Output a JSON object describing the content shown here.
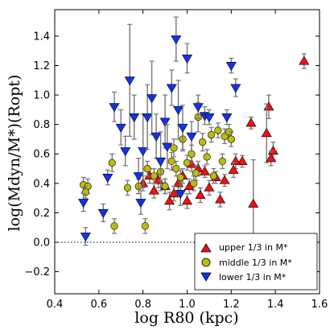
{
  "chart_data": {
    "type": "scatter",
    "title": "",
    "xlabel": "log R80 (kpc)",
    "ylabel": "log(Mdyn/M*)(Ropt)",
    "xlim": [
      0.4,
      1.6
    ],
    "ylim": [
      -0.35,
      1.58
    ],
    "xticks": [
      0.4,
      0.6,
      0.8,
      1.0,
      1.2,
      1.4,
      1.6
    ],
    "xtick_labels": [
      "0.4",
      "0.6",
      "0.8",
      "1.0",
      "1.2",
      "1.4",
      "1.6"
    ],
    "yticks": [
      -0.2,
      0.0,
      0.2,
      0.4,
      0.6,
      0.8,
      1.0,
      1.2,
      1.4
    ],
    "ytick_labels": [
      "−0.2",
      "0.0",
      "0.2",
      "0.4",
      "0.6",
      "0.8",
      "1.0",
      "1.2",
      "1.4"
    ],
    "reference_line": {
      "y": 0.0,
      "style": "dotted"
    },
    "grid": false,
    "legend": {
      "position": "bottom-right",
      "entries": [
        "upper 1/3 in M*",
        "middle 1/3 in M*",
        "lower 1/3 in M*"
      ]
    },
    "series": [
      {
        "name": "upper 1/3 in M*",
        "marker": "triangle-up",
        "color": "#ee1111",
        "points": [
          {
            "x": 1.53,
            "y": 1.23,
            "yerr": 0.05
          },
          {
            "x": 1.37,
            "y": 0.92,
            "yerr": 0.08
          },
          {
            "x": 1.36,
            "y": 0.74,
            "yerr": 0.2
          },
          {
            "x": 1.39,
            "y": 0.62,
            "yerr": 0.06
          },
          {
            "x": 1.38,
            "y": 0.57,
            "yerr": 0.05
          },
          {
            "x": 1.29,
            "y": 0.81,
            "yerr": 0.04
          },
          {
            "x": 1.3,
            "y": 0.26,
            "yerr": 0.3
          },
          {
            "x": 1.25,
            "y": 0.55,
            "yerr": 0.04
          },
          {
            "x": 1.22,
            "y": 0.55,
            "yerr": 0.05
          },
          {
            "x": 1.21,
            "y": 0.49,
            "yerr": 0.05
          },
          {
            "x": 1.17,
            "y": 0.42,
            "yerr": 0.04
          },
          {
            "x": 1.13,
            "y": 0.44,
            "yerr": 0.04
          },
          {
            "x": 1.1,
            "y": 0.37,
            "yerr": 0.05
          },
          {
            "x": 1.08,
            "y": 0.48,
            "yerr": 0.04
          },
          {
            "x": 1.05,
            "y": 0.5,
            "yerr": 0.05
          },
          {
            "x": 1.02,
            "y": 0.53,
            "yerr": 0.05
          },
          {
            "x": 1.01,
            "y": 0.38,
            "yerr": 0.05
          },
          {
            "x": 0.98,
            "y": 0.45,
            "yerr": 0.05
          },
          {
            "x": 0.96,
            "y": 0.4,
            "yerr": 0.05
          },
          {
            "x": 0.94,
            "y": 0.33,
            "yerr": 0.05
          },
          {
            "x": 0.92,
            "y": 0.28,
            "yerr": 0.06
          },
          {
            "x": 0.9,
            "y": 0.38,
            "yerr": 0.05
          },
          {
            "x": 0.87,
            "y": 0.42,
            "yerr": 0.05
          },
          {
            "x": 0.85,
            "y": 0.35,
            "yerr": 0.05
          },
          {
            "x": 0.83,
            "y": 0.45,
            "yerr": 0.05
          },
          {
            "x": 0.8,
            "y": 0.4,
            "yerr": 0.05
          },
          {
            "x": 1.0,
            "y": 0.28,
            "yerr": 0.05
          },
          {
            "x": 1.06,
            "y": 0.32,
            "yerr": 0.05
          },
          {
            "x": 1.15,
            "y": 0.29,
            "yerr": 0.05
          }
        ]
      },
      {
        "name": "middle 1/3 in M*",
        "marker": "circle",
        "color": "#bcbc0e",
        "points": [
          {
            "x": 0.53,
            "y": 0.39,
            "yerr": 0.05
          },
          {
            "x": 0.55,
            "y": 0.38,
            "yerr": 0.05
          },
          {
            "x": 0.54,
            "y": 0.34,
            "yerr": 0.04
          },
          {
            "x": 0.66,
            "y": 0.54,
            "yerr": 0.06
          },
          {
            "x": 0.67,
            "y": 0.11,
            "yerr": 0.05
          },
          {
            "x": 0.73,
            "y": 0.37,
            "yerr": 0.05
          },
          {
            "x": 0.78,
            "y": 0.38,
            "yerr": 0.05
          },
          {
            "x": 0.81,
            "y": 0.11,
            "yerr": 0.05
          },
          {
            "x": 0.82,
            "y": 0.5,
            "yerr": 0.05
          },
          {
            "x": 0.85,
            "y": 0.45,
            "yerr": 0.05
          },
          {
            "x": 0.88,
            "y": 0.48,
            "yerr": 0.06
          },
          {
            "x": 0.9,
            "y": 0.38,
            "yerr": 0.05
          },
          {
            "x": 0.93,
            "y": 0.55,
            "yerr": 0.06
          },
          {
            "x": 0.95,
            "y": 0.5,
            "yerr": 0.05
          },
          {
            "x": 0.97,
            "y": 0.44,
            "yerr": 0.05
          },
          {
            "x": 0.98,
            "y": 0.7,
            "yerr": 0.08
          },
          {
            "x": 1.0,
            "y": 0.54,
            "yerr": 0.05
          },
          {
            "x": 1.02,
            "y": 0.6,
            "yerr": 0.06
          },
          {
            "x": 1.04,
            "y": 0.47,
            "yerr": 0.05
          },
          {
            "x": 1.05,
            "y": 0.85,
            "yerr": 0.1
          },
          {
            "x": 1.07,
            "y": 0.68,
            "yerr": 0.06
          },
          {
            "x": 1.09,
            "y": 0.58,
            "yerr": 0.05
          },
          {
            "x": 1.11,
            "y": 0.73,
            "yerr": 0.05
          },
          {
            "x": 1.14,
            "y": 0.76,
            "yerr": 0.05
          },
          {
            "x": 1.17,
            "y": 0.72,
            "yerr": 0.05
          },
          {
            "x": 1.19,
            "y": 0.75,
            "yerr": 0.05
          },
          {
            "x": 1.2,
            "y": 0.7,
            "yerr": 0.05
          },
          {
            "x": 1.16,
            "y": 0.55,
            "yerr": 0.05
          },
          {
            "x": 1.12,
            "y": 0.45,
            "yerr": 0.05
          },
          {
            "x": 1.03,
            "y": 0.4,
            "yerr": 0.05
          },
          {
            "x": 0.94,
            "y": 0.64,
            "yerr": 0.06
          }
        ]
      },
      {
        "name": "lower 1/3 in M*",
        "marker": "triangle-down",
        "color": "#1133ee",
        "points": [
          {
            "x": 0.53,
            "y": 0.27,
            "yerr": 0.06
          },
          {
            "x": 0.54,
            "y": 0.04,
            "yerr": 0.06
          },
          {
            "x": 0.62,
            "y": 0.2,
            "yerr": 0.06
          },
          {
            "x": 0.64,
            "y": 0.44,
            "yerr": 0.05
          },
          {
            "x": 0.67,
            "y": 0.92,
            "yerr": 0.1
          },
          {
            "x": 0.7,
            "y": 0.78,
            "yerr": 0.12
          },
          {
            "x": 0.72,
            "y": 0.62,
            "yerr": 0.1
          },
          {
            "x": 0.74,
            "y": 1.1,
            "yerr": 0.38
          },
          {
            "x": 0.76,
            "y": 0.85,
            "yerr": 0.15
          },
          {
            "x": 0.78,
            "y": 0.45,
            "yerr": 0.12
          },
          {
            "x": 0.79,
            "y": 0.27,
            "yerr": 0.08
          },
          {
            "x": 0.8,
            "y": 0.62,
            "yerr": 0.25
          },
          {
            "x": 0.82,
            "y": 0.85,
            "yerr": 0.22
          },
          {
            "x": 0.84,
            "y": 0.98,
            "yerr": 0.25
          },
          {
            "x": 0.86,
            "y": 0.72,
            "yerr": 0.15
          },
          {
            "x": 0.88,
            "y": 0.55,
            "yerr": 0.2
          },
          {
            "x": 0.9,
            "y": 0.82,
            "yerr": 0.18
          },
          {
            "x": 0.91,
            "y": 0.65,
            "yerr": 0.15
          },
          {
            "x": 0.93,
            "y": 1.05,
            "yerr": 0.12
          },
          {
            "x": 0.95,
            "y": 1.38,
            "yerr": 0.15
          },
          {
            "x": 0.96,
            "y": 0.9,
            "yerr": 0.2
          },
          {
            "x": 0.98,
            "y": 0.78,
            "yerr": 0.15
          },
          {
            "x": 1.0,
            "y": 1.25,
            "yerr": 0.1
          },
          {
            "x": 1.02,
            "y": 0.72,
            "yerr": 0.1
          },
          {
            "x": 1.05,
            "y": 0.92,
            "yerr": 0.08
          },
          {
            "x": 1.08,
            "y": 0.86,
            "yerr": 0.06
          },
          {
            "x": 1.1,
            "y": 0.85,
            "yerr": 0.05
          },
          {
            "x": 1.18,
            "y": 0.85,
            "yerr": 0.05
          },
          {
            "x": 1.2,
            "y": 1.2,
            "yerr": 0.05
          },
          {
            "x": 1.22,
            "y": 1.05,
            "yerr": 0.06
          },
          {
            "x": 0.97,
            "y": 0.33,
            "yerr": 0.08
          }
        ]
      }
    ]
  }
}
